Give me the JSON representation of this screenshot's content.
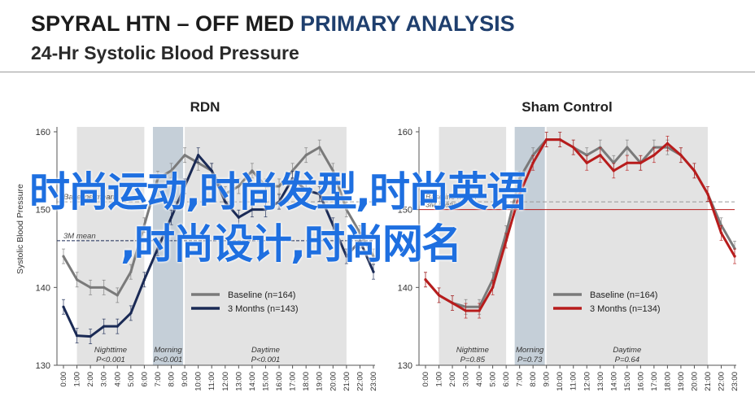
{
  "header": {
    "title_part1": "SPYRAL HTN – OFF MED ",
    "title_part2": "PRIMARY ANALYSIS",
    "subtitle": "24-Hr Systolic Blood Pressure"
  },
  "colors": {
    "accent": "#1f3f6e",
    "baseline": "#7a7a7a",
    "rdn_3months": "#1a2a55",
    "sham_3months": "#b81c1c",
    "period_shade": "#e3e3e3",
    "morning_shade": "#c5cfd8"
  },
  "watermark": {
    "line1": "时尚运动,时尚发型,时尚英语",
    "line2": ",时尚设计,时尚网名"
  },
  "chart_data": [
    {
      "type": "line",
      "title": "RDN",
      "ylabel": "Systolic Blood Pressure",
      "ylim": [
        130,
        160
      ],
      "yticks": [
        130,
        140,
        150,
        160
      ],
      "categories": [
        "0:00",
        "1:00",
        "2:00",
        "3:00",
        "4:00",
        "5:00",
        "6:00",
        "7:00",
        "8:00",
        "9:00",
        "10:00",
        "11:00",
        "12:00",
        "13:00",
        "14:00",
        "15:00",
        "16:00",
        "17:00",
        "18:00",
        "19:00",
        "20:00",
        "21:00",
        "22:00",
        "23:00"
      ],
      "series": [
        {
          "name": "Baseline (n=164)",
          "values": [
            144,
            141,
            140,
            140,
            139,
            142,
            148,
            154,
            155,
            157,
            156,
            155,
            152,
            153,
            155,
            153,
            153,
            155,
            157,
            158,
            155,
            150,
            147,
            144
          ],
          "color": "#7a7a7a"
        },
        {
          "name": "3 Months (n=143)",
          "values": [
            137.5,
            133.8,
            133.7,
            135,
            135,
            136.7,
            141,
            145,
            149,
            153,
            157,
            155,
            151,
            149,
            150,
            150,
            151,
            154,
            152.5,
            152,
            148,
            144,
            146,
            142
          ],
          "color": "#1a2a55"
        }
      ],
      "annotations": {
        "baseline_label": "Baseline mean",
        "baseline_mean": 151,
        "followup_label": "3M mean",
        "followup_mean": 146
      },
      "periods": [
        {
          "label": "Nighttime",
          "p": "P<0.001",
          "start": 1,
          "end": 6
        },
        {
          "label": "Morning",
          "p": "P<0.001",
          "start": 7,
          "end": 9
        },
        {
          "label": "Daytime",
          "p": "P<0.001",
          "start": 9,
          "end": 21
        }
      ],
      "legend": "center-right"
    },
    {
      "type": "line",
      "title": "Sham Control",
      "ylabel": "",
      "ylim": [
        130,
        160
      ],
      "yticks": [
        130,
        140,
        150,
        160
      ],
      "categories": [
        "0:00",
        "1:00",
        "2:00",
        "3:00",
        "4:00",
        "5:00",
        "6:00",
        "7:00",
        "8:00",
        "9:00",
        "10:00",
        "11:00",
        "12:00",
        "13:00",
        "14:00",
        "15:00",
        "16:00",
        "17:00",
        "18:00",
        "19:00",
        "20:00",
        "21:00",
        "22:00",
        "23:00"
      ],
      "series": [
        {
          "name": "Baseline (n=164)",
          "values": [
            141,
            139,
            138,
            137.5,
            137.5,
            141,
            147,
            154,
            157,
            159,
            159,
            158,
            157,
            158,
            156,
            158,
            156,
            158,
            158,
            157,
            155,
            152,
            148,
            145
          ],
          "color": "#7a7a7a"
        },
        {
          "name": "3 Months (n=134)",
          "values": [
            141,
            139,
            138,
            137,
            137,
            140,
            146,
            152,
            156,
            159,
            159,
            158,
            156,
            157,
            155,
            156,
            156,
            157,
            158.5,
            157,
            155,
            152,
            147,
            144
          ],
          "color": "#b81c1c"
        }
      ],
      "annotations": {
        "baseline_label": "Baseline mean",
        "baseline_mean": 151,
        "followup_label": "3M mean",
        "followup_mean": 150
      },
      "periods": [
        {
          "label": "Nighttime",
          "p": "P=0.85",
          "start": 1,
          "end": 6
        },
        {
          "label": "Morning",
          "p": "P=0.73",
          "start": 7,
          "end": 9
        },
        {
          "label": "Daytime",
          "p": "P=0.64",
          "start": 9,
          "end": 21
        }
      ],
      "legend": "center-right"
    }
  ]
}
